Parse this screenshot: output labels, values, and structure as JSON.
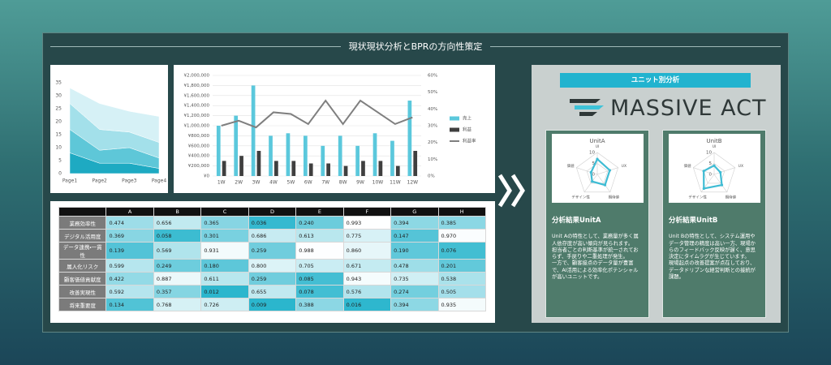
{
  "header": {
    "title": "現状現状分析とBPRの方向性策定"
  },
  "chart_data": [
    {
      "type": "area",
      "stacked": true,
      "categories": [
        "Page1",
        "Page2",
        "Page3",
        "Page4"
      ],
      "series": [
        {
          "color": "#1eaac2",
          "values": [
            8,
            4,
            4,
            2
          ]
        },
        {
          "color": "#5ec7d8",
          "values": [
            9,
            5,
            6,
            4
          ]
        },
        {
          "color": "#a3e0ea",
          "values": [
            10,
            8,
            6,
            6
          ]
        },
        {
          "color": "#d6f1f6",
          "values": [
            6,
            10,
            8,
            10
          ]
        }
      ],
      "ylim": [
        0,
        35
      ],
      "yticks": [
        0,
        5,
        10,
        15,
        20,
        25,
        30,
        35
      ]
    },
    {
      "type": "bar-line",
      "categories": [
        "1W",
        "2W",
        "3W",
        "4W",
        "5W",
        "6W",
        "7W",
        "8W",
        "9W",
        "10W",
        "11W",
        "12W"
      ],
      "series": [
        {
          "name": "売上",
          "type": "bar",
          "color": "#5bc8dc",
          "values": [
            1000000,
            1200000,
            1800000,
            800000,
            850000,
            800000,
            600000,
            800000,
            600000,
            850000,
            700000,
            1500000
          ]
        },
        {
          "name": "利益",
          "type": "bar",
          "color": "#3f3f3f",
          "values": [
            300000,
            400000,
            500000,
            300000,
            300000,
            250000,
            250000,
            200000,
            300000,
            300000,
            200000,
            500000
          ]
        },
        {
          "name": "利益率",
          "type": "line",
          "axis": "y2",
          "color": "#7f7f7f",
          "values": [
            30,
            33,
            29,
            38,
            37,
            31,
            45,
            31,
            45,
            38,
            31,
            35
          ]
        }
      ],
      "ylim": [
        0,
        2000000
      ],
      "yticks": [
        {
          "value": 0,
          "label": "¥0"
        },
        {
          "value": 200000,
          "label": "¥200,000"
        },
        {
          "value": 400000,
          "label": "¥400,000"
        },
        {
          "value": 600000,
          "label": "¥600,000"
        },
        {
          "value": 800000,
          "label": "¥800,000"
        },
        {
          "value": 1000000,
          "label": "¥1,000,000"
        },
        {
          "value": 1200000,
          "label": "¥1,200,000"
        },
        {
          "value": 1400000,
          "label": "¥1,400,000"
        },
        {
          "value": 1600000,
          "label": "¥1,600,000"
        },
        {
          "value": 1800000,
          "label": "¥1,800,000"
        },
        {
          "value": 2000000,
          "label": "¥2,000,000"
        }
      ],
      "y2lim": [
        0,
        60
      ],
      "y2ticks": [
        {
          "value": 0,
          "label": "0%"
        },
        {
          "value": 10,
          "label": "10%"
        },
        {
          "value": 20,
          "label": "20%"
        },
        {
          "value": 30,
          "label": "30%"
        },
        {
          "value": 40,
          "label": "40%"
        },
        {
          "value": 50,
          "label": "50%"
        },
        {
          "value": 60,
          "label": "60%"
        }
      ],
      "grid": true,
      "legend": "right"
    },
    {
      "type": "radar",
      "title": "UnitA",
      "axes": [
        "UI",
        "UX",
        "期待値",
        "デザイン性",
        "価値"
      ],
      "values": [
        7,
        6,
        6,
        4,
        3
      ],
      "rlim": [
        0,
        10
      ],
      "rticks": [
        0,
        5,
        10
      ],
      "color": "#3fbcd4"
    },
    {
      "type": "radar",
      "title": "UnitB",
      "axes": [
        "UI",
        "UX",
        "期待値",
        "デザイン性",
        "価値"
      ],
      "values": [
        4,
        3,
        6,
        8,
        5
      ],
      "rlim": [
        0,
        10
      ],
      "rticks": [
        0,
        5,
        10
      ],
      "color": "#3fbcd4"
    }
  ],
  "table": {
    "columns": [
      "A",
      "B",
      "C",
      "D",
      "E",
      "F",
      "G",
      "H"
    ],
    "rows": [
      {
        "label": "業務効率性",
        "values": [
          "0.474",
          "0.656",
          "0.365",
          "0.036",
          "0.240",
          "0.993",
          "0.394",
          "0.385"
        ]
      },
      {
        "label": "デジタル活用度",
        "values": [
          "0.369",
          "0.058",
          "0.301",
          "0.686",
          "0.613",
          "0.775",
          "0.147",
          "0.970"
        ]
      },
      {
        "label": "データ連携・一貫性",
        "values": [
          "0.139",
          "0.569",
          "0.931",
          "0.259",
          "0.988",
          "0.860",
          "0.190",
          "0.076"
        ]
      },
      {
        "label": "属人化リスク",
        "values": [
          "0.599",
          "0.249",
          "0.180",
          "0.800",
          "0.705",
          "0.671",
          "0.478",
          "0.201"
        ]
      },
      {
        "label": "顧客価値貢献度",
        "values": [
          "0.422",
          "0.887",
          "0.611",
          "0.259",
          "0.085",
          "0.943",
          "0.735",
          "0.538"
        ]
      },
      {
        "label": "改善実現性",
        "values": [
          "0.592",
          "0.357",
          "0.012",
          "0.655",
          "0.078",
          "0.576",
          "0.274",
          "0.505"
        ]
      },
      {
        "label": "将来重要度",
        "values": [
          "0.134",
          "0.768",
          "0.726",
          "0.009",
          "0.388",
          "0.016",
          "0.394",
          "0.935"
        ]
      }
    ]
  },
  "unit_panel": {
    "title": "ユニット別分析",
    "logo": "MASSIVE ACT",
    "units": [
      {
        "heading": "分析結果UnitA",
        "paragraphs": [
          "Unit Aの特性として、業務量が多く属人依存度が高い傾向が見られます。",
          "担当者ごとの判断基準が統一されておらず、手戻りや二重処理が発生。",
          "一方で、顧客接点のデータ量が豊富で、AI活用による効率化ポテンシャルが高いユニットです。"
        ]
      },
      {
        "heading": "分析結果UnitB",
        "paragraphs": [
          "Unit Bの特性として、システム運用やデータ管理の精度は高い一方、現場からのフィードバック反映が遅く、意思決定にタイムラグが生じています。",
          "現場起点の改善提案が点在しており、データドリブンな経営判断との接続が課題。"
        ]
      }
    ]
  }
}
